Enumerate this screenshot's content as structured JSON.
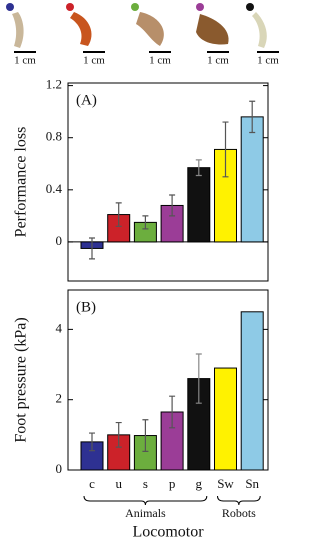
{
  "images": {
    "scale_labels": [
      "1 cm",
      "1 cm",
      "1 cm",
      "1 cm",
      "1 cm"
    ]
  },
  "chart_data": [
    {
      "type": "bar",
      "panel_label": "(A)",
      "y_label": "Performance loss",
      "values": [
        -0.05,
        0.21,
        0.15,
        0.28,
        0.57,
        0.71,
        0.96
      ],
      "errors": [
        0.08,
        0.09,
        0.05,
        0.08,
        0.06,
        0.21,
        0.12
      ],
      "colors": [
        "#2e3192",
        "#cc2229",
        "#6cae3e",
        "#9b3d97",
        "#111111",
        "#fff200",
        "#8ecae6"
      ],
      "ylim": [
        -0.3,
        1.22
      ],
      "yticks": [
        0,
        0.4,
        0.8,
        1.2
      ],
      "zero_line": true
    },
    {
      "type": "bar",
      "panel_label": "(B)",
      "y_label": "Foot pressure (kPa)",
      "x_label": "Locomotor",
      "categories": [
        "c",
        "u",
        "s",
        "p",
        "g",
        "Sw",
        "Sn"
      ],
      "values": [
        0.8,
        1.0,
        0.98,
        1.65,
        2.6,
        2.9,
        4.5
      ],
      "errors": [
        0.25,
        0.35,
        0.45,
        0.45,
        0.7,
        null,
        null
      ],
      "colors": [
        "#2e3192",
        "#cc2229",
        "#6cae3e",
        "#9b3d97",
        "#111111",
        "#fff200",
        "#8ecae6"
      ],
      "groups": [
        "Animals",
        "Robots"
      ],
      "ylim": [
        0,
        5.12
      ],
      "yticks": [
        0,
        2,
        4
      ]
    }
  ]
}
